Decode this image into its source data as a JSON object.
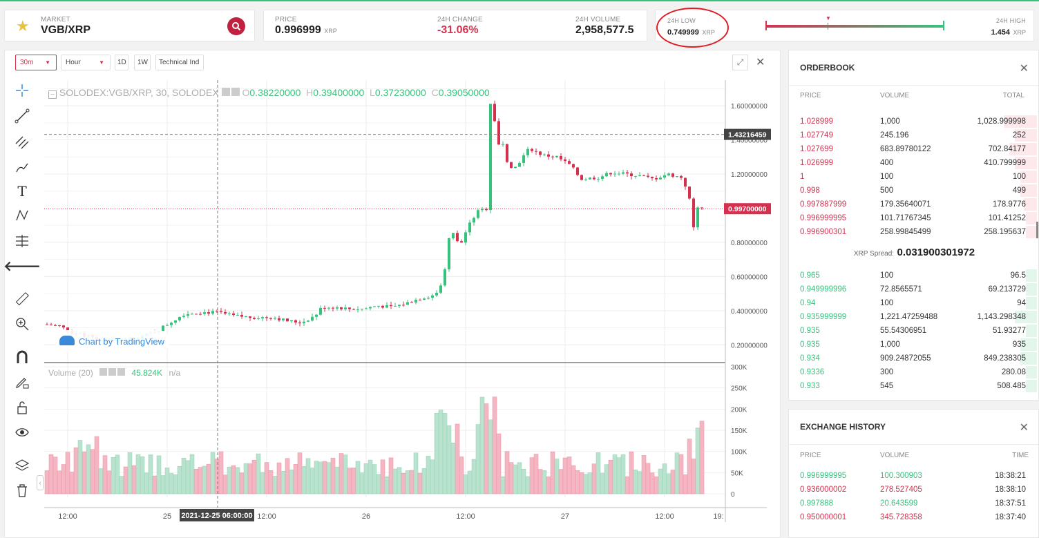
{
  "market": {
    "label": "MARKET",
    "pair": "VGB/XRP"
  },
  "price": {
    "label": "PRICE",
    "value": "0.996999",
    "unit": "XRP"
  },
  "change": {
    "label": "24H CHANGE",
    "value": "-31.06%"
  },
  "volume": {
    "label": "24H VOLUME",
    "value": "2,958,577.5"
  },
  "low": {
    "label": "24H LOW",
    "value": "0.749999",
    "unit": "XRP"
  },
  "high": {
    "label": "24H HIGH",
    "value": "1.454",
    "unit": "XRP"
  },
  "toolbar": {
    "interval": "30m",
    "unit": "Hour",
    "d": "1D",
    "w": "1W",
    "indicators": "Technical Ind"
  },
  "legend": {
    "symbol": "SOLODEX:VGB/XRP, 30, SOLODEX",
    "o_k": "O",
    "o": "0.38220000",
    "h_k": "H",
    "h": "0.39400000",
    "l_k": "L",
    "l": "0.37230000",
    "c_k": "C",
    "c": "0.39050000"
  },
  "volume_legend": {
    "name": "Volume (20)",
    "value": "45.824K",
    "na": "n/a"
  },
  "watermark": "Chart by TradingView",
  "price_axis": [
    "1.60000000",
    "1.40000000",
    "1.20000000",
    "0.80000000",
    "0.60000000",
    "0.40000000",
    "0.20000000"
  ],
  "price_marks": {
    "crosshair": "1.43216459",
    "last": "0.99700000"
  },
  "volume_axis": [
    "300K",
    "250K",
    "200K",
    "150K",
    "100K",
    "50K",
    "0"
  ],
  "time_axis": [
    "12:00",
    "25",
    "12:00",
    "26",
    "12:00",
    "27",
    "12:00",
    "19:"
  ],
  "time_cursor": "2021-12-25 06:00:00",
  "orderbook": {
    "title": "ORDERBOOK",
    "cols": [
      "PRICE",
      "VOLUME",
      "TOTAL"
    ],
    "asks": [
      {
        "p": "1.028999",
        "v": "1,000",
        "t": "1,028.999998",
        "d": 0.3
      },
      {
        "p": "1.027749",
        "v": "245.196",
        "t": "252",
        "d": 0.2
      },
      {
        "p": "1.027699",
        "v": "683.89780122",
        "t": "702.84177",
        "d": 0.25
      },
      {
        "p": "1.026999",
        "v": "400",
        "t": "410.799999",
        "d": 0.2
      },
      {
        "p": "1",
        "v": "100",
        "t": "100",
        "d": 0.15
      },
      {
        "p": "0.998",
        "v": "500",
        "t": "499",
        "d": 0.15
      },
      {
        "p": "0.997887999",
        "v": "179.35640071",
        "t": "178.9776",
        "d": 0.12
      },
      {
        "p": "0.996999995",
        "v": "101.71767345",
        "t": "101.41252",
        "d": 0.1
      },
      {
        "p": "0.996900301",
        "v": "258.99845499",
        "t": "258.195637",
        "d": 0.1
      }
    ],
    "spread_label": "XRP Spread:",
    "spread": "0.031900301972",
    "bids": [
      {
        "p": "0.965",
        "v": "100",
        "t": "96.5",
        "d": 0.1
      },
      {
        "p": "0.949999996",
        "v": "72.8565571",
        "t": "69.213729",
        "d": 0.1
      },
      {
        "p": "0.94",
        "v": "100",
        "t": "94",
        "d": 0.1
      },
      {
        "p": "0.935999999",
        "v": "1,221.47259488",
        "t": "1,143.298348",
        "d": 0.2
      },
      {
        "p": "0.935",
        "v": "55.54306951",
        "t": "51.93277",
        "d": 0.1
      },
      {
        "p": "0.935",
        "v": "1,000",
        "t": "935",
        "d": 0.15
      },
      {
        "p": "0.934",
        "v": "909.24872055",
        "t": "849.238305",
        "d": 0.15
      },
      {
        "p": "0.9336",
        "v": "300",
        "t": "280.08",
        "d": 0.1
      },
      {
        "p": "0.933",
        "v": "545",
        "t": "508.485",
        "d": 0.1
      }
    ]
  },
  "history": {
    "title": "EXCHANGE HISTORY",
    "cols": [
      "PRICE",
      "VOLUME",
      "TIME"
    ],
    "rows": [
      {
        "p": "0.996999995",
        "v": "100.300903",
        "t": "18:38:21",
        "s": "buy"
      },
      {
        "p": "0.936000002",
        "v": "278.527405",
        "t": "18:38:10",
        "s": "sell"
      },
      {
        "p": "0.997888",
        "v": "20.643599",
        "t": "18:37:51",
        "s": "buy"
      },
      {
        "p": "0.950000001",
        "v": "345.728358",
        "t": "18:37:40",
        "s": "sell"
      }
    ]
  },
  "colors": {
    "green": "#37c27c",
    "red": "#d6304f",
    "vol_green": "#b9e3cf",
    "vol_red": "#f4b6c2"
  }
}
